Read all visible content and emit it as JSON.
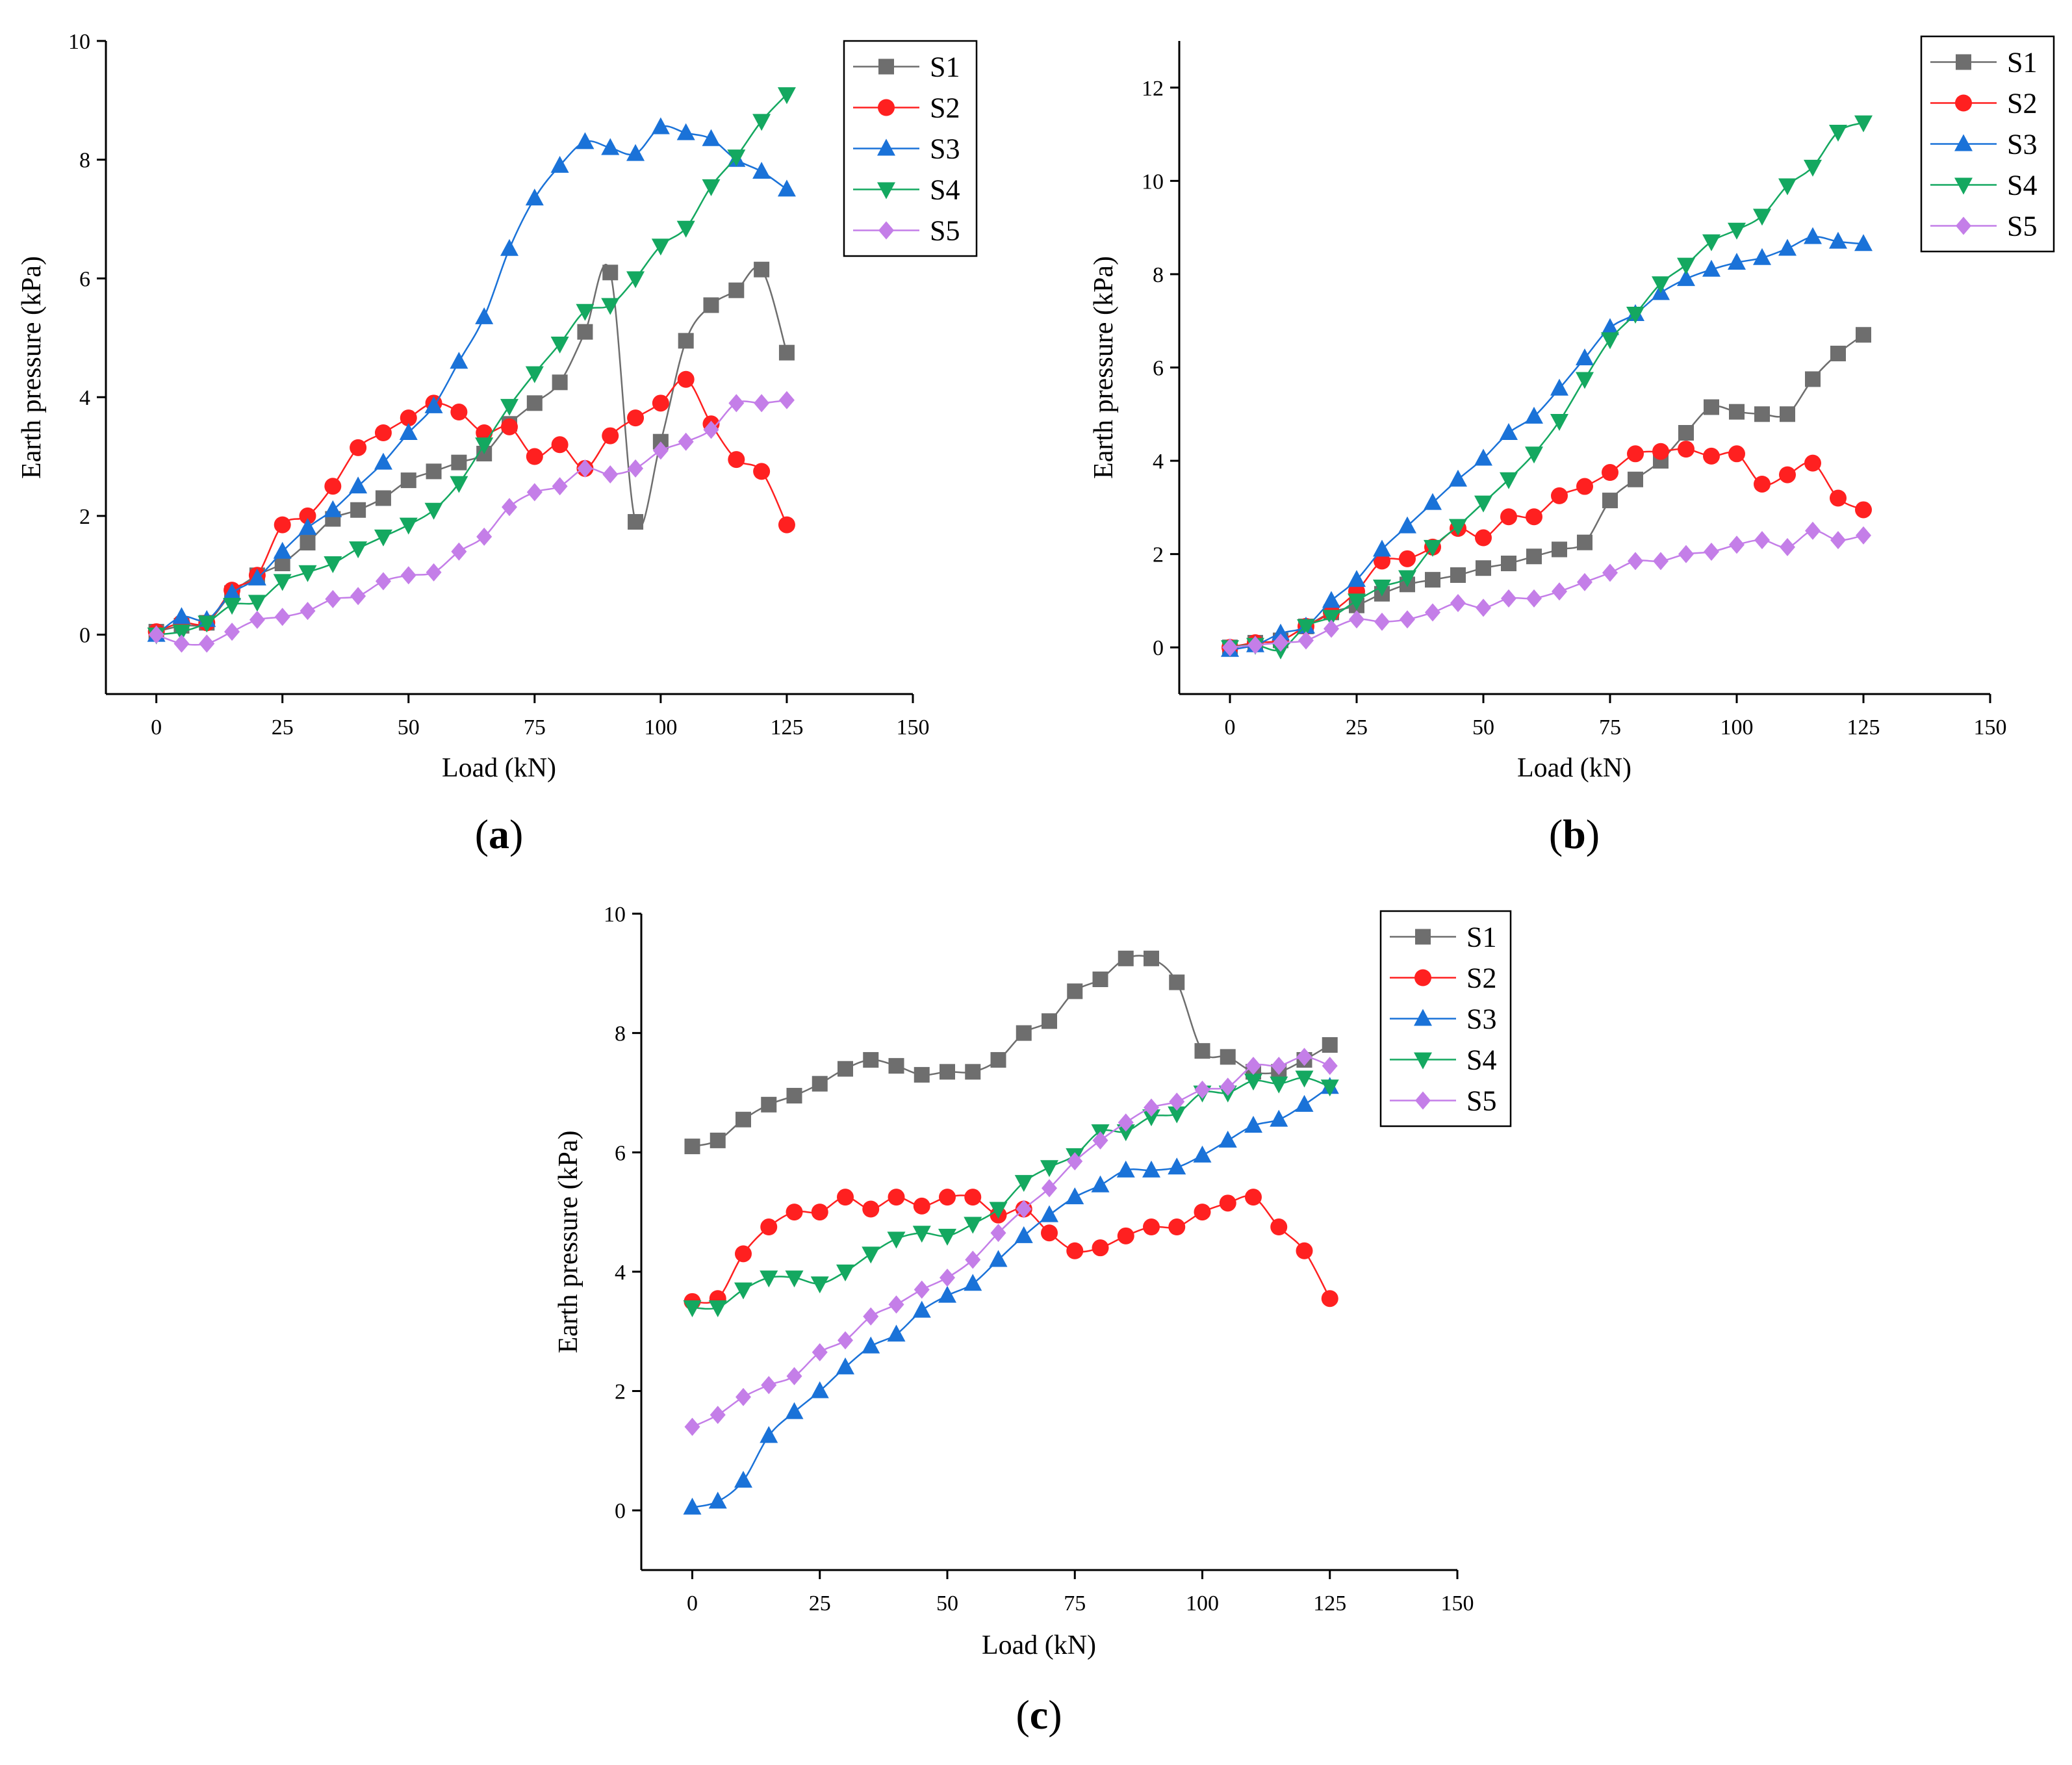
{
  "figure": {
    "series_colors": {
      "S1": "#6e6e6e",
      "S2": "#ff2020",
      "S3": "#1a72d8",
      "S4": "#14a860",
      "S5": "#c47ee8"
    },
    "series_markers": {
      "S1": "square",
      "S2": "circle",
      "S3": "triangle-up",
      "S4": "triangle-down",
      "S5": "diamond"
    }
  },
  "chart_data": [
    {
      "id": "a",
      "type": "line",
      "panel_label": {
        "open": "(",
        "letter": "a",
        "close": ")"
      },
      "xlabel": "Load (kN)",
      "ylabel": "Earth pressure (kPa)",
      "xlim": [
        -10,
        150
      ],
      "ylim": [
        -1,
        10
      ],
      "xticks": [
        0,
        25,
        50,
        75,
        100,
        125,
        150
      ],
      "yticks": [
        0,
        2,
        4,
        6,
        8,
        10
      ],
      "legend_position": "top-right",
      "x": [
        0,
        5,
        10,
        15,
        20,
        25,
        30,
        35,
        40,
        45,
        50,
        55,
        60,
        65,
        70,
        75,
        80,
        85,
        90,
        95,
        100,
        105,
        110,
        115,
        120,
        125
      ],
      "series": [
        {
          "name": "S1",
          "values": [
            0.05,
            0.15,
            0.2,
            0.7,
            1.0,
            1.2,
            1.55,
            1.95,
            2.1,
            2.3,
            2.6,
            2.75,
            2.9,
            3.05,
            3.55,
            3.9,
            4.25,
            5.1,
            6.1,
            1.9,
            3.25,
            4.95,
            5.55,
            5.8,
            6.15,
            4.75
          ]
        },
        {
          "name": "S2",
          "values": [
            0.05,
            0.2,
            0.2,
            0.75,
            1.0,
            1.85,
            2.0,
            2.5,
            3.15,
            3.4,
            3.65,
            3.9,
            3.75,
            3.4,
            3.5,
            3.0,
            3.2,
            2.8,
            3.35,
            3.65,
            3.9,
            4.3,
            3.55,
            2.95,
            2.75,
            1.85
          ]
        },
        {
          "name": "S3",
          "values": [
            0.0,
            0.3,
            0.25,
            0.7,
            0.95,
            1.4,
            1.8,
            2.1,
            2.5,
            2.9,
            3.4,
            3.85,
            4.6,
            5.35,
            6.5,
            7.35,
            7.9,
            8.3,
            8.2,
            8.1,
            8.55,
            8.45,
            8.35,
            8.0,
            7.8,
            7.5
          ]
        },
        {
          "name": "S4",
          "values": [
            0.0,
            0.05,
            0.2,
            0.5,
            0.55,
            0.9,
            1.05,
            1.2,
            1.45,
            1.65,
            1.85,
            2.1,
            2.55,
            3.2,
            3.85,
            4.4,
            4.9,
            5.45,
            5.55,
            6.0,
            6.55,
            6.85,
            7.55,
            8.05,
            8.65,
            9.1
          ]
        },
        {
          "name": "S5",
          "values": [
            0.0,
            -0.15,
            -0.15,
            0.05,
            0.25,
            0.3,
            0.4,
            0.6,
            0.65,
            0.9,
            1.0,
            1.05,
            1.4,
            1.65,
            2.15,
            2.4,
            2.5,
            2.8,
            2.7,
            2.8,
            3.1,
            3.25,
            3.45,
            3.9,
            3.9,
            3.95
          ]
        }
      ]
    },
    {
      "id": "b",
      "type": "line",
      "panel_label": {
        "open": "(",
        "letter": "b",
        "close": ")"
      },
      "xlabel": "Load (kN)",
      "ylabel": "Earth pressure (kPa)",
      "xlim": [
        -10,
        150
      ],
      "ylim": [
        -1,
        13
      ],
      "xticks": [
        0,
        25,
        50,
        75,
        100,
        125,
        150
      ],
      "yticks": [
        0,
        2,
        4,
        6,
        8,
        10,
        12
      ],
      "legend_position": "top-right",
      "x": [
        0,
        5,
        10,
        15,
        20,
        25,
        30,
        35,
        40,
        45,
        50,
        55,
        60,
        65,
        70,
        75,
        80,
        85,
        90,
        95,
        100,
        105,
        110,
        115,
        120,
        125
      ],
      "series": [
        {
          "name": "S1",
          "values": [
            0.0,
            0.1,
            0.15,
            0.45,
            0.75,
            0.9,
            1.15,
            1.35,
            1.45,
            1.55,
            1.7,
            1.8,
            1.95,
            2.1,
            2.25,
            3.15,
            3.6,
            4.0,
            4.6,
            5.15,
            5.05,
            5.0,
            5.0,
            5.75,
            6.3,
            6.7
          ]
        },
        {
          "name": "S2",
          "values": [
            0.0,
            0.1,
            0.15,
            0.45,
            0.75,
            1.2,
            1.85,
            1.9,
            2.15,
            2.55,
            2.35,
            2.8,
            2.8,
            3.25,
            3.45,
            3.75,
            4.15,
            4.2,
            4.25,
            4.1,
            4.15,
            3.5,
            3.7,
            3.95,
            3.2,
            2.95
          ]
        },
        {
          "name": "S3",
          "values": [
            -0.05,
            0.05,
            0.3,
            0.45,
            1.0,
            1.45,
            2.1,
            2.6,
            3.1,
            3.6,
            4.05,
            4.6,
            4.95,
            5.55,
            6.2,
            6.85,
            7.15,
            7.6,
            7.9,
            8.1,
            8.25,
            8.35,
            8.55,
            8.8,
            8.7,
            8.65
          ]
        },
        {
          "name": "S4",
          "values": [
            0.0,
            0.05,
            -0.05,
            0.45,
            0.65,
            1.0,
            1.3,
            1.5,
            2.15,
            2.6,
            3.1,
            3.6,
            4.15,
            4.85,
            5.75,
            6.6,
            7.15,
            7.8,
            8.2,
            8.7,
            8.95,
            9.25,
            9.9,
            10.3,
            11.05,
            11.25
          ]
        },
        {
          "name": "S5",
          "values": [
            0.0,
            0.05,
            0.1,
            0.15,
            0.4,
            0.6,
            0.55,
            0.6,
            0.75,
            0.95,
            0.85,
            1.05,
            1.05,
            1.2,
            1.4,
            1.6,
            1.85,
            1.85,
            2.0,
            2.05,
            2.2,
            2.3,
            2.15,
            2.5,
            2.3,
            2.4
          ]
        }
      ]
    },
    {
      "id": "c",
      "type": "line",
      "panel_label": {
        "open": "(",
        "letter": "c",
        "close": ")"
      },
      "xlabel": "Load (kN)",
      "ylabel": "Earth pressure (kPa)",
      "xlim": [
        -10,
        150
      ],
      "ylim": [
        -1,
        10
      ],
      "xticks": [
        0,
        25,
        50,
        75,
        100,
        125,
        150
      ],
      "yticks": [
        0,
        2,
        4,
        6,
        8,
        10
      ],
      "legend_position": "top-right",
      "x": [
        0,
        5,
        10,
        15,
        20,
        25,
        30,
        35,
        40,
        45,
        50,
        55,
        60,
        65,
        70,
        75,
        80,
        85,
        90,
        95,
        100,
        105,
        110,
        115,
        120,
        125
      ],
      "series": [
        {
          "name": "S1",
          "values": [
            6.1,
            6.2,
            6.55,
            6.8,
            6.95,
            7.15,
            7.4,
            7.55,
            7.45,
            7.3,
            7.35,
            7.35,
            7.55,
            8.0,
            8.2,
            8.7,
            8.9,
            9.25,
            9.25,
            8.85,
            7.7,
            7.6,
            7.35,
            7.35,
            7.55,
            7.8
          ]
        },
        {
          "name": "S2",
          "values": [
            3.5,
            3.55,
            4.3,
            4.75,
            5.0,
            5.0,
            5.25,
            5.05,
            5.25,
            5.1,
            5.25,
            5.25,
            4.95,
            5.05,
            4.65,
            4.35,
            4.4,
            4.6,
            4.75,
            4.75,
            5.0,
            5.15,
            5.25,
            4.75,
            4.35,
            3.55
          ]
        },
        {
          "name": "S3",
          "values": [
            0.05,
            0.15,
            0.5,
            1.25,
            1.65,
            2.0,
            2.4,
            2.75,
            2.95,
            3.35,
            3.6,
            3.8,
            4.2,
            4.6,
            4.95,
            5.25,
            5.45,
            5.7,
            5.7,
            5.75,
            5.95,
            6.2,
            6.45,
            6.55,
            6.8,
            7.1
          ]
        },
        {
          "name": "S4",
          "values": [
            3.4,
            3.4,
            3.7,
            3.9,
            3.9,
            3.8,
            4.0,
            4.3,
            4.55,
            4.65,
            4.6,
            4.8,
            5.05,
            5.5,
            5.75,
            5.95,
            6.35,
            6.35,
            6.6,
            6.65,
            7.0,
            7.0,
            7.2,
            7.15,
            7.25,
            7.1
          ]
        },
        {
          "name": "S5",
          "values": [
            1.4,
            1.6,
            1.9,
            2.1,
            2.25,
            2.65,
            2.85,
            3.25,
            3.45,
            3.7,
            3.9,
            4.2,
            4.65,
            5.05,
            5.4,
            5.85,
            6.2,
            6.5,
            6.75,
            6.85,
            7.05,
            7.1,
            7.45,
            7.45,
            7.6,
            7.45
          ]
        }
      ]
    }
  ]
}
